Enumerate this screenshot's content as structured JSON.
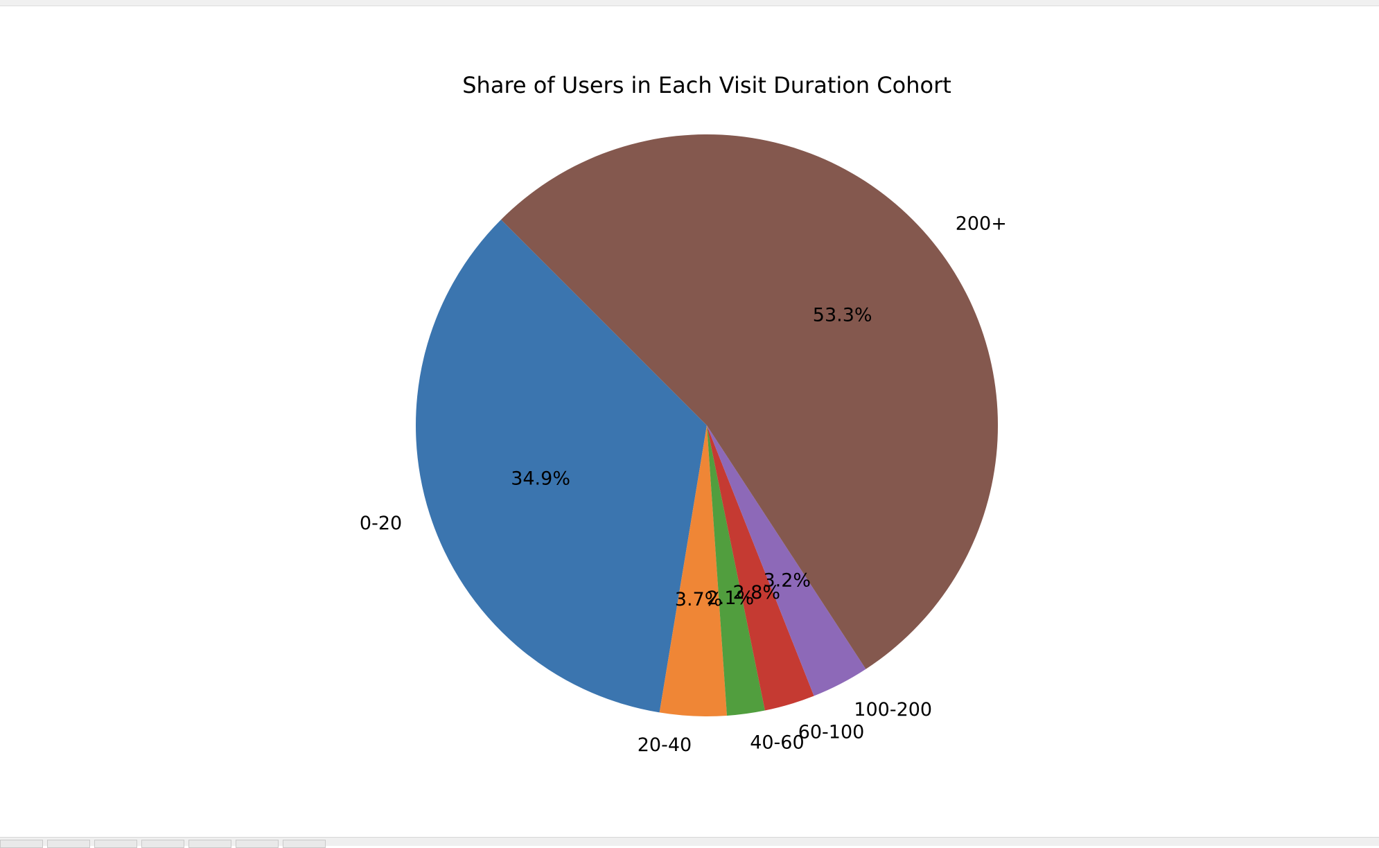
{
  "chart_data": {
    "type": "pie",
    "title": "Share of Users in Each Visit Duration Cohort",
    "start_angle_deg": 135,
    "direction": "counterclockwise",
    "slices": [
      {
        "label": "0-20",
        "value": 34.9,
        "pct_label": "34.9%",
        "color": "#3b75af"
      },
      {
        "label": "20-40",
        "value": 3.7,
        "pct_label": "3.7%",
        "color": "#ef8636"
      },
      {
        "label": "40-60",
        "value": 2.1,
        "pct_label": "2.1%",
        "color": "#519e3e"
      },
      {
        "label": "60-100",
        "value": 2.8,
        "pct_label": "2.8%",
        "color": "#c53a32"
      },
      {
        "label": "100-200",
        "value": 3.2,
        "pct_label": "3.2%",
        "color": "#8d69b8"
      },
      {
        "label": "200+",
        "value": 53.3,
        "pct_label": "53.3%",
        "color": "#84584e"
      }
    ]
  }
}
